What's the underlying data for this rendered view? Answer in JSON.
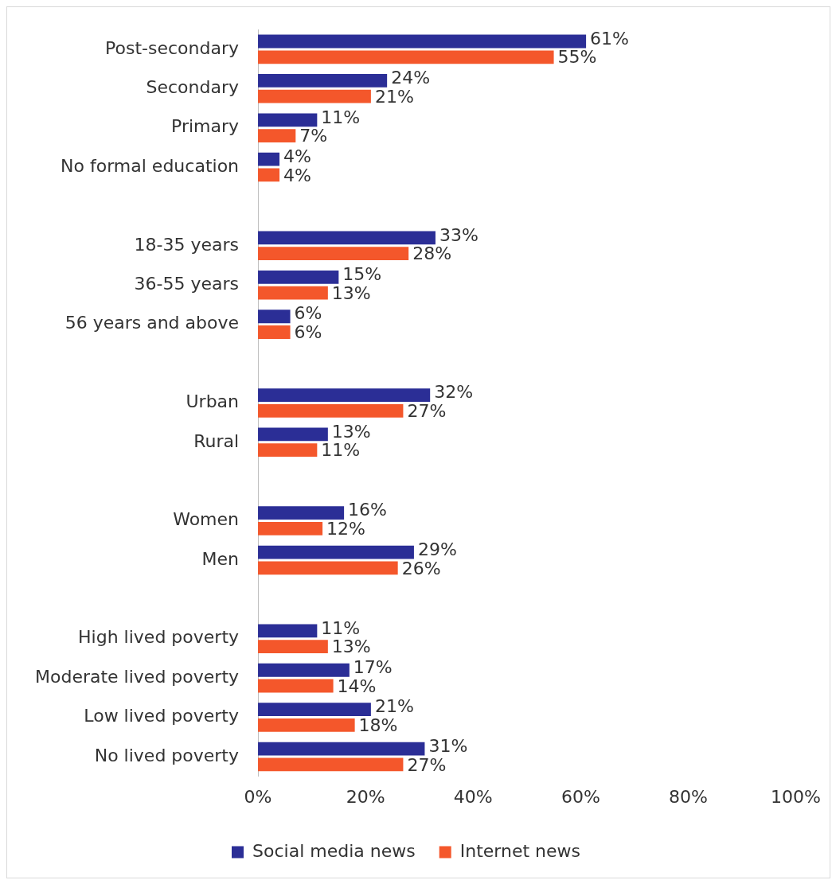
{
  "chart_data": {
    "type": "bar",
    "orientation": "horizontal",
    "categories": [
      "Post-secondary",
      "Secondary",
      "Primary",
      "No formal education",
      null,
      "18-35 years",
      "36-55 years",
      "56 years and above",
      null,
      "Urban",
      "Rural",
      null,
      "Women",
      "Men",
      null,
      "High lived poverty",
      "Moderate lived poverty",
      "Low lived poverty",
      "No lived poverty"
    ],
    "series": [
      {
        "name": "Social media news",
        "color": "#2b2e96",
        "values": [
          61,
          24,
          11,
          4,
          null,
          33,
          15,
          6,
          null,
          32,
          13,
          null,
          16,
          29,
          null,
          11,
          17,
          21,
          31
        ],
        "value_labels": [
          "61%",
          "24%",
          "11%",
          "4%",
          null,
          "33%",
          "15%",
          "6%",
          null,
          "32%",
          "13%",
          null,
          "16%",
          "29%",
          null,
          "11%",
          "17%",
          "21%",
          "31%"
        ]
      },
      {
        "name": "Internet news",
        "color": "#f4572b",
        "values": [
          55,
          21,
          7,
          4,
          null,
          28,
          13,
          6,
          null,
          27,
          11,
          null,
          12,
          26,
          null,
          13,
          14,
          18,
          27
        ],
        "value_labels": [
          "55%",
          "21%",
          "7%",
          "4%",
          null,
          "28%",
          "13%",
          "6%",
          null,
          "27%",
          "11%",
          null,
          "12%",
          "26%",
          null,
          "13%",
          "14%",
          "18%",
          "27%"
        ]
      }
    ],
    "xlim": [
      0,
      100
    ],
    "xticks": [
      {
        "value": 0,
        "label": "0%"
      },
      {
        "value": 20,
        "label": "20%"
      },
      {
        "value": 40,
        "label": "40%"
      },
      {
        "value": 60,
        "label": "60%"
      },
      {
        "value": 80,
        "label": "80%"
      },
      {
        "value": 100,
        "label": "100%"
      }
    ],
    "grid": false,
    "legend": "bottom"
  }
}
